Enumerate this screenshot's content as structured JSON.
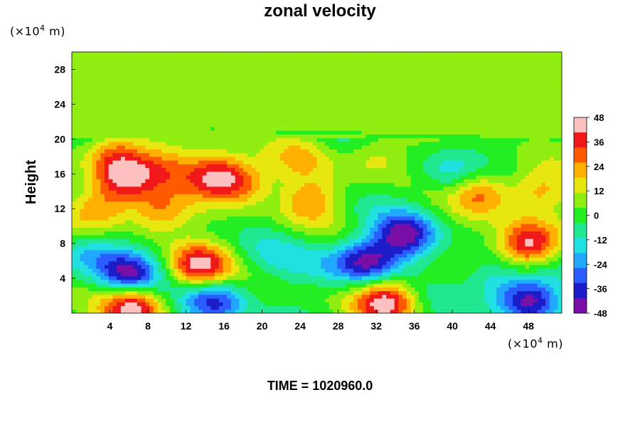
{
  "chart_data": {
    "type": "heatmap",
    "title": "zonal velocity",
    "ylabel": "Height",
    "x_unit_prefix": "(×10",
    "x_unit_exp": "4",
    "x_unit_suffix": " m)",
    "y_unit_prefix": "(×10",
    "y_unit_exp": "4",
    "y_unit_suffix": " m)",
    "xlim": [
      0,
      51.5
    ],
    "ylim": [
      0,
      30
    ],
    "x_ticks": [
      4,
      8,
      12,
      16,
      20,
      24,
      28,
      32,
      36,
      40,
      44,
      48
    ],
    "y_ticks": [
      4,
      8,
      12,
      16,
      20,
      24,
      28
    ],
    "colorbar": {
      "min": -48,
      "max": 48,
      "ticks": [
        48,
        36,
        24,
        12,
        0,
        -12,
        -24,
        -36,
        -48
      ],
      "colors": [
        "#7a0fa8",
        "#1c1cc8",
        "#2a5cff",
        "#20a8ff",
        "#20e0e0",
        "#20e890",
        "#22ee22",
        "#90ee10",
        "#e8e810",
        "#ffb000",
        "#ff5a00",
        "#f01818",
        "#ffc0c0"
      ]
    },
    "anomalies": [
      {
        "x": 5.5,
        "y": 15.5,
        "v": 40
      },
      {
        "x": 4.5,
        "y": 18.5,
        "v": 28
      },
      {
        "x": 10,
        "y": 17,
        "v": 22
      },
      {
        "x": 15,
        "y": 16,
        "v": 42
      },
      {
        "x": 18,
        "y": 15,
        "v": 30
      },
      {
        "x": 13.5,
        "y": 5.5,
        "v": 44
      },
      {
        "x": 6,
        "y": 4.5,
        "v": -46
      },
      {
        "x": 6.5,
        "y": 1,
        "v": 50
      },
      {
        "x": 15,
        "y": 1.5,
        "v": -40
      },
      {
        "x": 2,
        "y": 7,
        "v": -22
      },
      {
        "x": 31,
        "y": 6,
        "v": -48
      },
      {
        "x": 35,
        "y": 9,
        "v": -44
      },
      {
        "x": 33,
        "y": 1.5,
        "v": 48
      },
      {
        "x": 48,
        "y": 8,
        "v": 52
      },
      {
        "x": 48,
        "y": 1.5,
        "v": -48
      },
      {
        "x": 43,
        "y": 14,
        "v": 30
      },
      {
        "x": 49,
        "y": 14,
        "v": 26
      },
      {
        "x": 32,
        "y": 18,
        "v": 18
      },
      {
        "x": 24,
        "y": 18,
        "v": 14
      },
      {
        "x": 25,
        "y": 13,
        "v": 26
      },
      {
        "x": 9,
        "y": 11.5,
        "v": 28
      },
      {
        "x": 22,
        "y": 7,
        "v": -8
      },
      {
        "x": 40,
        "y": 16,
        "v": -18
      },
      {
        "x": 44,
        "y": 4,
        "v": -20
      },
      {
        "x": 3,
        "y": 12,
        "v": 30
      },
      {
        "x": 27,
        "y": 6,
        "v": -12
      }
    ]
  },
  "time_label": "TIME = 1020960.0"
}
